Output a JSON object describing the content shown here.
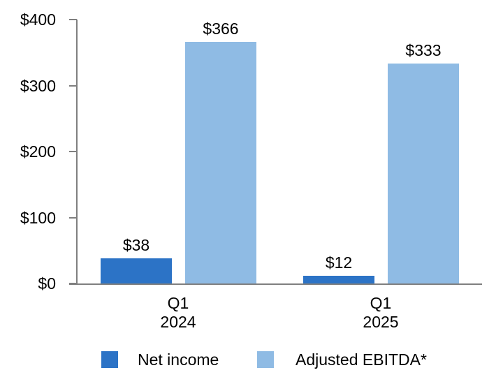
{
  "chart_data": {
    "type": "bar",
    "title": "",
    "xlabel": "",
    "ylabel": "",
    "categories": [
      [
        "Q1",
        "2024"
      ],
      [
        "Q1",
        "2025"
      ]
    ],
    "series": [
      {
        "name": "Net income",
        "color": "#2c73c6",
        "values": [
          38,
          12
        ],
        "value_labels": [
          "$38",
          "$12"
        ]
      },
      {
        "name": "Adjusted EBITDA*",
        "color": "#8fbbe4",
        "values": [
          366,
          333
        ],
        "value_labels": [
          "$366",
          "$333"
        ]
      }
    ],
    "ylim": [
      0,
      400
    ],
    "yticks": [
      0,
      100,
      200,
      300,
      400
    ],
    "ytick_labels": [
      "$0",
      "$100",
      "$200",
      "$300",
      "$400"
    ],
    "grid": false,
    "legend_position": "bottom",
    "axis_color": "#7f7f7f",
    "text_color": "#000000"
  }
}
